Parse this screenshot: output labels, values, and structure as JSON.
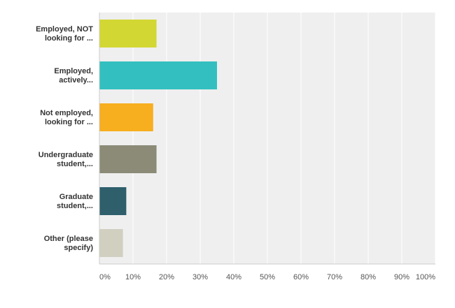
{
  "chart_data": {
    "type": "bar",
    "orientation": "horizontal",
    "categories": [
      "Employed, NOT looking for ...",
      "Employed, actively...",
      "Not employed, looking for ...",
      "Undergraduate student,...",
      "Graduate student,...",
      "Other (please specify)"
    ],
    "category_lines": [
      [
        "Employed, NOT",
        "looking for ..."
      ],
      [
        "Employed,",
        "actively..."
      ],
      [
        "Not employed,",
        "looking for ..."
      ],
      [
        "Undergraduate",
        "student,..."
      ],
      [
        "Graduate",
        "student,..."
      ],
      [
        "Other (please",
        "specify)"
      ]
    ],
    "values": [
      17,
      35,
      16,
      17,
      8,
      7
    ],
    "colors": [
      "#d3d734",
      "#33bfbf",
      "#f7ae1f",
      "#8b8b78",
      "#2e5f6b",
      "#d1cfc0"
    ],
    "xlim": [
      0,
      100
    ],
    "x_tick_labels": [
      "0%",
      "10%",
      "20%",
      "30%",
      "40%",
      "50%",
      "60%",
      "70%",
      "80%",
      "90%",
      "100%"
    ],
    "grid": true,
    "plot_background": "#efefef",
    "title": "",
    "xlabel": "",
    "ylabel": ""
  }
}
